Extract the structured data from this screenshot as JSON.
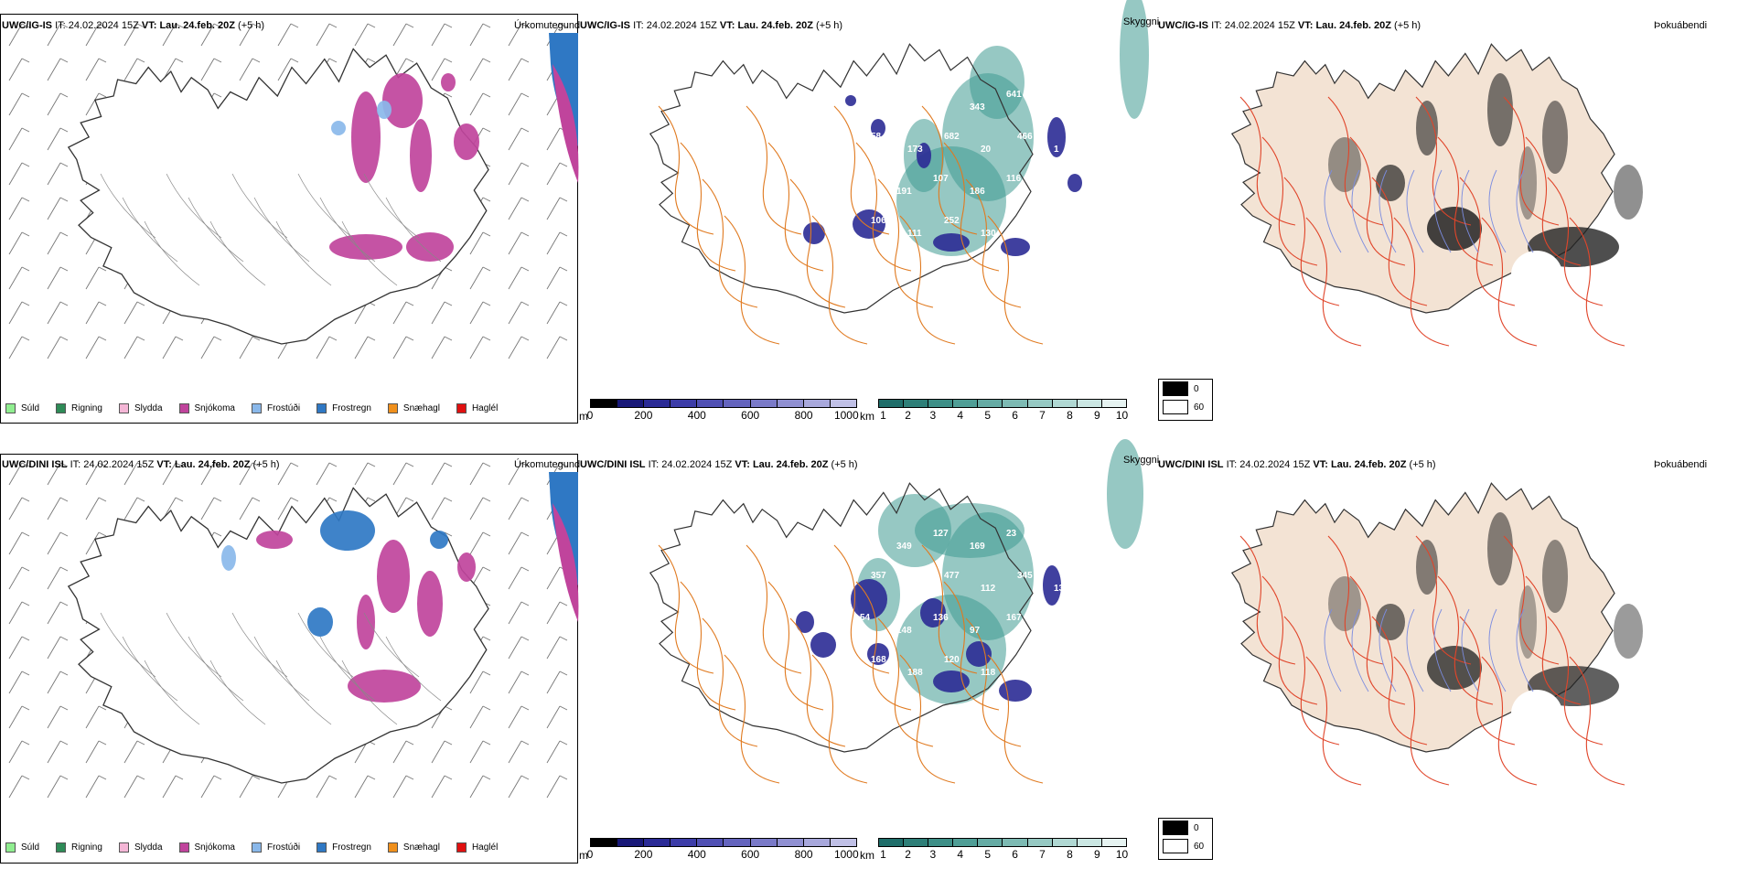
{
  "rows": [
    {
      "precip": {
        "header_model": "UWC/IG-IS",
        "header_it_label": "IT:",
        "header_it": "24.02.2024 15Z",
        "header_vt_label": "VT:",
        "header_vt": "Lau. 24.feb. 20Z",
        "header_lead": "(+5 h)",
        "title": "Úrkomutegund"
      },
      "cloud": {
        "header_model": "UWC/IG-IS",
        "header_it_label": "IT:",
        "header_it": "24.02.2024 15Z",
        "header_vt_label": "VT:",
        "header_vt": "Lau. 24.feb. 20Z",
        "header_lead": "(+5 h)",
        "title": "Skyggni",
        "labels": [
          "332",
          "176",
          "355",
          "343",
          "641",
          "36",
          "58",
          "173",
          "682",
          "20",
          "466",
          "1",
          "130",
          "191",
          "107",
          "186",
          "116",
          "183",
          "106",
          "111",
          "252",
          "130"
        ]
      },
      "fog": {
        "header_model": "UWC/IG-IS",
        "header_it_label": "IT:",
        "header_it": "24.02.2024 15Z",
        "header_vt_label": "VT:",
        "header_vt": "Lau. 24.feb. 20Z",
        "header_lead": "(+5 h)",
        "title": "Þokuábendi"
      }
    },
    {
      "precip": {
        "header_model": "UWC/DINI ISL",
        "header_it_label": "IT:",
        "header_it": "24.02.2024 15Z",
        "header_vt_label": "VT:",
        "header_vt": "Lau. 24.feb. 20Z",
        "header_lead": "(+5 h)",
        "title": "Úrkomutegund"
      },
      "cloud": {
        "header_model": "UWC/DINI ISL",
        "header_it_label": "IT:",
        "header_it": "24.02.2024 15Z",
        "header_vt_label": "VT:",
        "header_vt": "Lau. 24.feb. 20Z",
        "header_lead": "(+5 h)",
        "title": "Skyggni",
        "labels": [
          "271",
          "349",
          "127",
          "169",
          "23",
          "356",
          "357",
          "552",
          "477",
          "112",
          "345",
          "139",
          "54",
          "148",
          "136",
          "97",
          "167",
          "154",
          "168",
          "188",
          "120",
          "118",
          "94",
          "113"
        ]
      },
      "fog": {
        "header_model": "UWC/DINI ISL",
        "header_it_label": "IT:",
        "header_it": "24.02.2024 15Z",
        "header_vt_label": "VT:",
        "header_vt": "Lau. 24.feb. 20Z",
        "header_lead": "(+5 h)",
        "title": "Þokuábendi"
      }
    }
  ],
  "precip_legend": [
    {
      "label": "Súld",
      "color": "#90ee90"
    },
    {
      "label": "Rigning",
      "color": "#2e8b57"
    },
    {
      "label": "Slydda",
      "color": "#f4b6d6"
    },
    {
      "label": "Snjókoma",
      "color": "#c0449c"
    },
    {
      "label": "Frostúði",
      "color": "#8ab8ea"
    },
    {
      "label": "Frostregn",
      "color": "#2f78c4"
    },
    {
      "label": "Snæhagl",
      "color": "#f0901c"
    },
    {
      "label": "Haglél",
      "color": "#e01010"
    }
  ],
  "cloud_base_scale": {
    "unit": "m",
    "ticks": [
      "0",
      "200",
      "400",
      "600",
      "800",
      "1000"
    ],
    "colors": [
      "#000000",
      "#181878",
      "#2a2a96",
      "#3c3ca8",
      "#5050b4",
      "#6464be",
      "#7a7ac8",
      "#9090d2",
      "#a8a8dc",
      "#c0c0e6"
    ]
  },
  "visibility_scale": {
    "unit": "km",
    "ticks": [
      "1",
      "2",
      "3",
      "4",
      "5",
      "6",
      "7",
      "8",
      "9",
      "10"
    ],
    "colors": [
      "#1f6e6a",
      "#2e7f78",
      "#3d8f87",
      "#4f9e96",
      "#65aba4",
      "#7dbab3",
      "#96c9c3",
      "#b0d8d3",
      "#cbe7e3",
      "#e6f3f1"
    ]
  },
  "fog_legend": [
    {
      "label": "0",
      "color": "#000000"
    },
    {
      "label": "60",
      "color": "#ffffff"
    }
  ],
  "colors": {
    "snow": "#c0449c",
    "freezing_rain": "#2f78c4",
    "freezing_drizzle": "#8ab8ea",
    "cloud_teal": "#3f9a92",
    "cloud_navy": "#2b2b95",
    "roads": "#e07a20",
    "land_beige": "#f3e3d4",
    "fog_roads": "#e0452a",
    "rivers": "#7b8ce0"
  }
}
